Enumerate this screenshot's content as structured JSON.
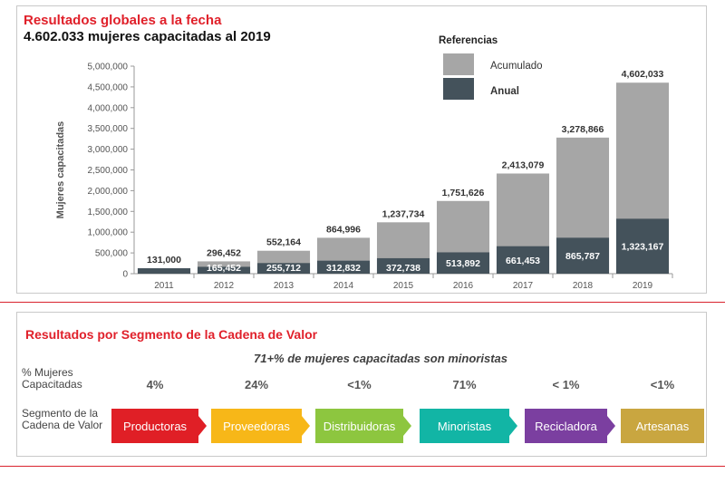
{
  "header": {
    "title": "Resultados globales a la fecha",
    "subtitle": "4.602.033 mujeres capacitadas al 2019"
  },
  "chart_data": {
    "type": "bar",
    "ylabel": "Mujeres capacitadas",
    "ylim": [
      0,
      5000000
    ],
    "y_ticks": [
      "5,000,000",
      "4,500,000",
      "4,000,000",
      "3,500,000",
      "3,000,000",
      "2,500,000",
      "2,000,000",
      "1,500,000",
      "1,000,000",
      "500,000",
      "0"
    ],
    "legend": {
      "title": "Referencias",
      "placement": "top-right"
    },
    "categories": [
      "2011",
      "2012",
      "2013",
      "2014",
      "2015",
      "2016",
      "2017",
      "2018",
      "2019"
    ],
    "series": [
      {
        "name": "Acumulado",
        "color": "#a6a6a6",
        "values": [
          131000,
          296452,
          552164,
          864996,
          1237734,
          1751626,
          2413079,
          3278866,
          4602033
        ],
        "labels": [
          "131,000",
          "296,452",
          "552,164",
          "864,996",
          "1,237,734",
          "1,751,626",
          "2,413,079",
          "3,278,866",
          "4,602,033"
        ]
      },
      {
        "name": "Anual",
        "color": "#44525b",
        "values": [
          131000,
          165452,
          255712,
          312832,
          372738,
          513892,
          661453,
          865787,
          1323167
        ],
        "labels": [
          "",
          "165,452",
          "255,712",
          "312,832",
          "372,738",
          "513,892",
          "661,453",
          "865,787",
          "1,323,167"
        ]
      }
    ]
  },
  "segments": {
    "title": "Resultados por Segmento de la Cadena de Valor",
    "highlight": "71+% de mujeres capacitadas son minoristas",
    "pct_label": "% Mujeres Capacitadas",
    "segment_label": "Segmento de la Cadena de Valor",
    "items": [
      {
        "name": "Productoras",
        "pct": "4%",
        "color": "#e01f26"
      },
      {
        "name": "Proveedoras",
        "pct": "24%",
        "color": "#f7b718"
      },
      {
        "name": "Distribuidoras",
        "pct": "<1%",
        "color": "#8dc63f"
      },
      {
        "name": "Minoristas",
        "pct": "71%",
        "color": "#12b5a5"
      },
      {
        "name": "Recicladora",
        "pct": "< 1%",
        "color": "#7b3fa0"
      },
      {
        "name": "Artesanas",
        "pct": "<1%",
        "color": "#c9a640"
      }
    ]
  }
}
